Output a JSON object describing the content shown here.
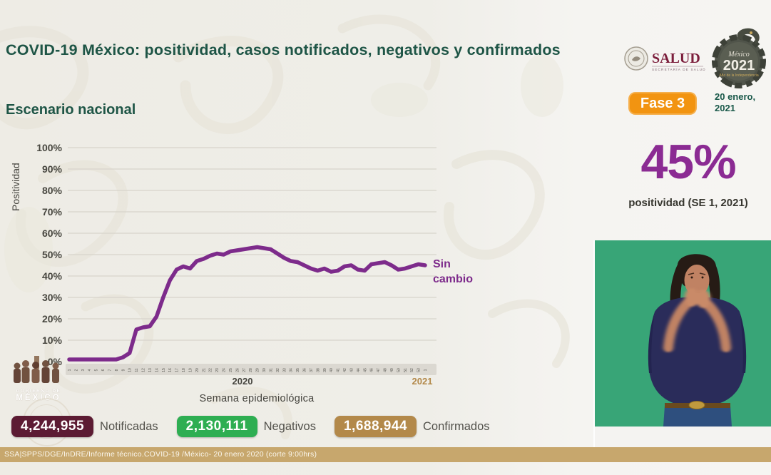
{
  "header": {
    "title": "COVID-19 México: positividad, casos notificados, negativos y confirmados",
    "subtitle": "Escenario nacional",
    "salud": {
      "name": "SALUD",
      "subname": "SECRETARÍA DE SALUD"
    },
    "mexico2021": {
      "script": "México",
      "year": "2021",
      "tagline": "Año de la Independencia"
    },
    "fase_badge": "Fase 3",
    "date_line1": "20 enero,",
    "date_line2": "2021"
  },
  "highlight": {
    "value": "45%",
    "label": "positividad (SE 1, 2021)",
    "color": "#8b2b93"
  },
  "chart_data": {
    "type": "line",
    "title": "",
    "ylabel": "Positividad",
    "xlabel": "Semana epidemiológica",
    "ylim": [
      0,
      100
    ],
    "ytick_step": 10,
    "grid": true,
    "line_color": "#7d2b8b",
    "annotation": "Sin cambio",
    "x_year_labels": [
      {
        "label": "2020",
        "color": "#45443e"
      },
      {
        "label": "2021",
        "color": "#b3894a"
      }
    ],
    "x_weeks": [
      1,
      2,
      3,
      4,
      5,
      6,
      7,
      8,
      9,
      10,
      11,
      12,
      13,
      14,
      15,
      16,
      17,
      18,
      19,
      20,
      21,
      22,
      23,
      24,
      25,
      26,
      27,
      28,
      29,
      30,
      31,
      32,
      33,
      34,
      35,
      36,
      37,
      38,
      39,
      40,
      41,
      42,
      43,
      44,
      45,
      46,
      47,
      48,
      49,
      50,
      51,
      52,
      53,
      1
    ],
    "series": [
      {
        "name": "Positividad (%)",
        "values": [
          1,
          1,
          1,
          1,
          1,
          1,
          1,
          1,
          2,
          4,
          15,
          16,
          16.5,
          21,
          30,
          38,
          43,
          44.5,
          43.5,
          47,
          48,
          49.5,
          50.5,
          50,
          51.5,
          52,
          52.5,
          53,
          53.5,
          53,
          52.5,
          50.5,
          48.5,
          47,
          46.5,
          45,
          43.5,
          42.5,
          43.5,
          42,
          42.5,
          44.5,
          45,
          43,
          42.5,
          45.5,
          46,
          46.5,
          45,
          43,
          43.5,
          44.5,
          45.5,
          45
        ]
      }
    ]
  },
  "stats": [
    {
      "value": "4,244,955",
      "label": "Notificadas",
      "color": "#5c1b33"
    },
    {
      "value": "2,130,111",
      "label": "Negativos",
      "color": "#2eae52"
    },
    {
      "value": "1,688,944",
      "label": "Confirmados",
      "color": "#b3894a"
    }
  ],
  "footer": {
    "source": "SSA|SPPS/DGE/InDRE/Informe técnico.COVID-19 /México- 20 enero 2020 (corte 9:00hrs)"
  },
  "branding": {
    "gobierno_line1": "GOBIERNO DE",
    "gobierno_line2": "MÉXICO"
  }
}
